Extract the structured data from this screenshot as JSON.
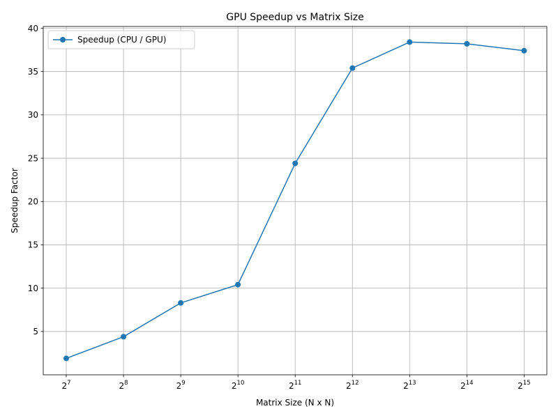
{
  "chart_data": {
    "type": "line",
    "title": "GPU Speedup vs Matrix Size",
    "xlabel": "Matrix Size (N x N)",
    "ylabel": "Speedup Factor",
    "x_scale": "log2",
    "x_tick_base": "2",
    "x_tick_exponents": [
      "7",
      "8",
      "9",
      "10",
      "11",
      "12",
      "13",
      "14",
      "15"
    ],
    "y_ticks": [
      "5",
      "10",
      "15",
      "20",
      "25",
      "30",
      "35",
      "40"
    ],
    "ylim": [
      0.0,
      40.2
    ],
    "grid": true,
    "legend_position": "top-left",
    "x": [
      128,
      256,
      512,
      1024,
      2048,
      4096,
      8192,
      16384,
      32768
    ],
    "series": [
      {
        "name": "Speedup (CPU / GPU)",
        "color": "#1f77b4",
        "marker": "circle",
        "values": [
          1.9,
          4.4,
          8.3,
          10.4,
          24.4,
          35.4,
          38.4,
          38.2,
          37.4
        ]
      }
    ]
  }
}
